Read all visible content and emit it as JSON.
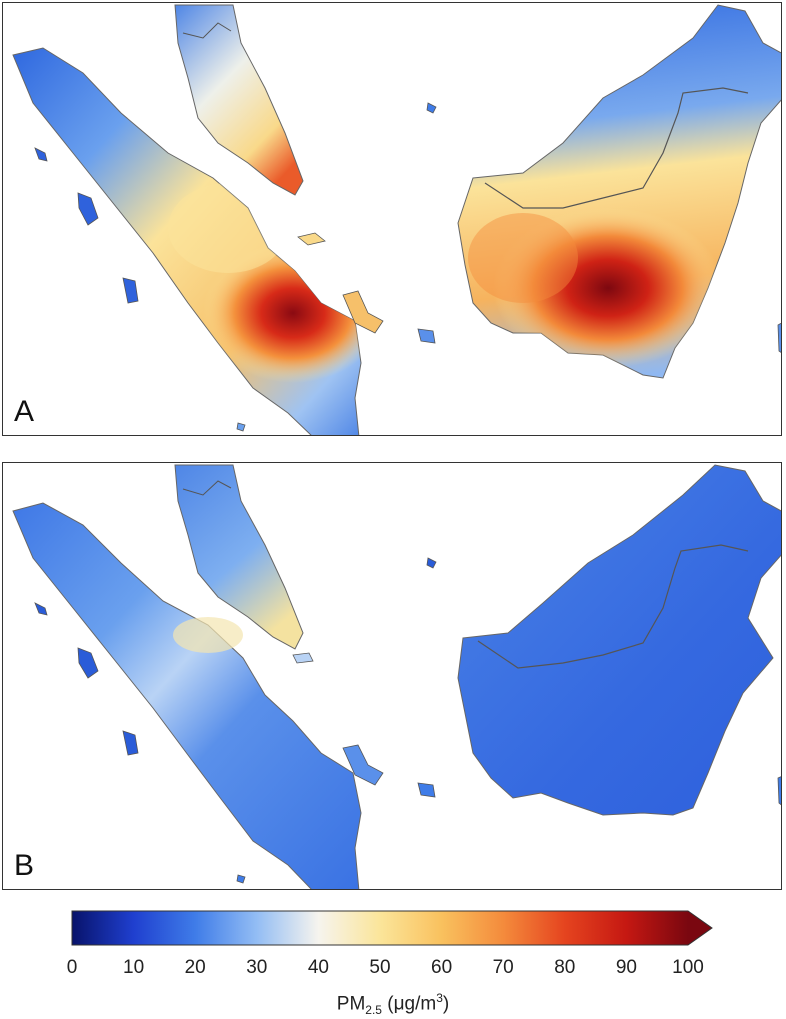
{
  "panels": {
    "a": {
      "label": "A"
    },
    "b": {
      "label": "B"
    }
  },
  "colorbar": {
    "title": "PM",
    "title_subscript": "2.5",
    "title_units": " (μg/m",
    "title_units_sup": "3",
    "title_close": ")",
    "ticks": [
      "0",
      "10",
      "20",
      "30",
      "40",
      "50",
      "60",
      "70",
      "80",
      "90",
      "100"
    ],
    "range": [
      0,
      100
    ],
    "extend": "max",
    "colors": {
      "v0": "#08136b",
      "v10": "#1f3fcf",
      "v20": "#3f7ce8",
      "v30": "#93bdf4",
      "v40": "#f6f4ee",
      "v50": "#fbe59a",
      "v60": "#f9c15e",
      "v70": "#f48b3c",
      "v80": "#e5441f",
      "v90": "#c51812",
      "v100": "#7a0710"
    }
  }
}
